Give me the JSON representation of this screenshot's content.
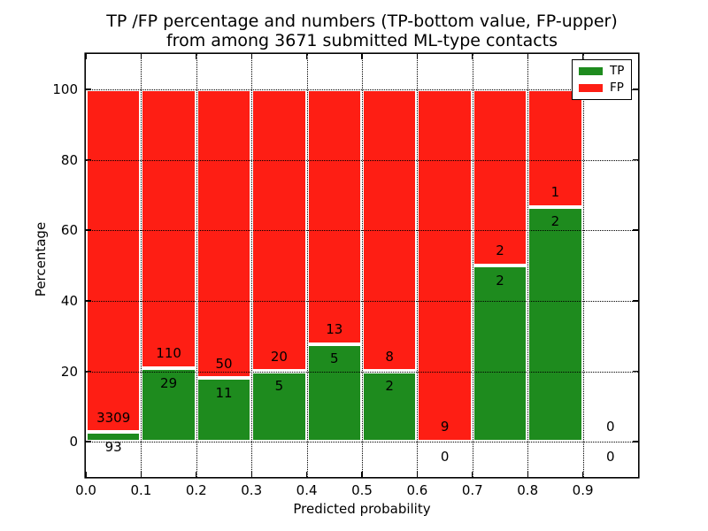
{
  "figure": {
    "title_line1": "TP /FP percentage and numbers (TP-bottom value, FP-upper)",
    "title_line2": "from among 3671 submitted ML-type contacts",
    "xlabel": "Predicted probability",
    "ylabel": "Percentage"
  },
  "legend": {
    "items": [
      {
        "label": "TP",
        "color": "#1e8b1e"
      },
      {
        "label": "FP",
        "color": "#fe1e14"
      }
    ]
  },
  "chart_data": {
    "type": "bar",
    "stacked": true,
    "normalized": "percent-of-bin",
    "title": "TP /FP percentage and numbers (TP-bottom value, FP-upper) from among 3671 submitted ML-type contacts",
    "xlabel": "Predicted probability",
    "ylabel": "Percentage",
    "xlim": [
      0.0,
      1.0
    ],
    "ylim": [
      -10,
      110
    ],
    "grid": true,
    "legend_position": "upper right",
    "x_tick_labels": [
      "0.0",
      "0.1",
      "0.2",
      "0.3",
      "0.4",
      "0.5",
      "0.6",
      "0.7",
      "0.8",
      "0.9"
    ],
    "y_tick_labels": [
      "0",
      "20",
      "40",
      "60",
      "80",
      "100"
    ],
    "bin_edges": [
      0.0,
      0.1,
      0.2,
      0.3,
      0.4,
      0.5,
      0.6,
      0.7,
      0.8,
      0.9,
      1.0
    ],
    "series": [
      {
        "name": "TP",
        "color": "#1e8b1e",
        "counts": [
          93,
          29,
          11,
          5,
          5,
          2,
          0,
          2,
          2,
          0
        ]
      },
      {
        "name": "FP",
        "color": "#fe1e14",
        "counts": [
          3309,
          110,
          50,
          20,
          13,
          8,
          9,
          2,
          1,
          0
        ]
      }
    ],
    "tp_percent_of_bin": [
      2.73,
      20.86,
      18.03,
      20.0,
      27.78,
      20.0,
      0.0,
      50.0,
      66.67,
      0.0
    ],
    "total_contacts": 3671
  }
}
